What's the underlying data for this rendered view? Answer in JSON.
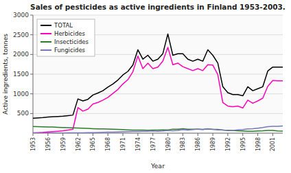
{
  "chart_data": {
    "type": "line",
    "title": "Sales of pesticides as active ingredients in Finland 1953-2003.",
    "xlabel": "Year",
    "ylabel": "Active ingredients, tonnes",
    "x": [
      1953,
      1954,
      1955,
      1956,
      1957,
      1958,
      1959,
      1960,
      1961,
      1962,
      1963,
      1964,
      1965,
      1966,
      1967,
      1968,
      1969,
      1970,
      1971,
      1972,
      1973,
      1974,
      1975,
      1976,
      1977,
      1978,
      1979,
      1980,
      1981,
      1982,
      1983,
      1984,
      1985,
      1986,
      1987,
      1988,
      1989,
      1990,
      1991,
      1992,
      1993,
      1994,
      1995,
      1996,
      1997,
      1998,
      1999,
      2000,
      2001,
      2002,
      2003
    ],
    "series": [
      {
        "name": "TOTAL",
        "color": "#000000",
        "values": [
          380,
          390,
          395,
          410,
          420,
          425,
          430,
          445,
          460,
          870,
          820,
          860,
          970,
          1020,
          1080,
          1170,
          1250,
          1350,
          1480,
          1570,
          1730,
          2120,
          1880,
          1980,
          1830,
          1880,
          2020,
          2520,
          1980,
          2020,
          2020,
          1880,
          1830,
          1880,
          1830,
          2120,
          1980,
          1780,
          1180,
          1030,
          980,
          980,
          950,
          1180,
          1080,
          1130,
          1180,
          1580,
          1680,
          1680,
          1680
        ]
      },
      {
        "name": "Herbicides",
        "color": "#ff00bb",
        "values": [
          10,
          15,
          20,
          30,
          40,
          50,
          60,
          80,
          100,
          650,
          560,
          610,
          740,
          780,
          840,
          910,
          1010,
          1110,
          1250,
          1360,
          1560,
          1960,
          1640,
          1780,
          1640,
          1680,
          1830,
          2180,
          1740,
          1780,
          1690,
          1640,
          1590,
          1640,
          1590,
          1740,
          1730,
          1490,
          780,
          690,
          670,
          690,
          640,
          840,
          760,
          820,
          890,
          1190,
          1340,
          1330,
          1330
        ]
      },
      {
        "name": "Insecticides",
        "color": "#2d7a2d",
        "values": [
          170,
          165,
          160,
          155,
          155,
          150,
          145,
          140,
          135,
          130,
          125,
          120,
          115,
          110,
          108,
          105,
          100,
          95,
          90,
          85,
          80,
          80,
          78,
          76,
          80,
          78,
          82,
          85,
          100,
          100,
          115,
          100,
          100,
          100,
          98,
          110,
          95,
          95,
          80,
          75,
          68,
          60,
          55,
          50,
          48,
          55,
          60,
          68,
          68,
          55,
          52
        ]
      },
      {
        "name": "Fungicides",
        "color": "#7777bb",
        "values": [
          5,
          5,
          5,
          5,
          5,
          5,
          5,
          8,
          8,
          8,
          8,
          12,
          15,
          18,
          20,
          24,
          28,
          32,
          36,
          40,
          44,
          44,
          48,
          50,
          55,
          50,
          55,
          70,
          60,
          68,
          90,
          80,
          90,
          105,
          90,
          115,
          98,
          82,
          82,
          65,
          68,
          85,
          92,
          108,
          112,
          128,
          145,
          165,
          175,
          175,
          182
        ]
      }
    ],
    "xlim": [
      1953,
      2003
    ],
    "xticks": [
      1953,
      1956,
      1959,
      1962,
      1965,
      1968,
      1971,
      1974,
      1977,
      1980,
      1983,
      1986,
      1989,
      1992,
      1995,
      1998,
      2001
    ],
    "ylim": [
      0,
      3000
    ],
    "yticks": [
      500,
      1000,
      1500,
      2000,
      2500,
      3000
    ],
    "grid": true,
    "legend": "upper left"
  }
}
